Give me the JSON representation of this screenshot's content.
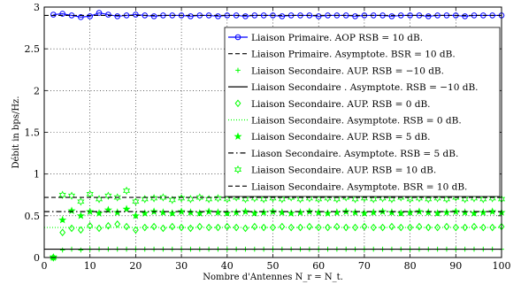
{
  "chart_data": {
    "type": "line",
    "title": "",
    "xlabel": "Nombre d'Antennes N_r = N_t.",
    "ylabel": "Débit in bps/Hz.",
    "xlim": [
      0,
      100
    ],
    "ylim": [
      0,
      3
    ],
    "x_ticks": [
      "0",
      "10",
      "20",
      "30",
      "40",
      "50",
      "60",
      "70",
      "80",
      "90",
      "100"
    ],
    "y_ticks": [
      "0",
      "0.5",
      "1",
      "1.5",
      "2",
      "2.5",
      "3"
    ],
    "grid": true,
    "legend_position": "top-right",
    "series": [
      {
        "name": "Liaison Primaire. AOP RSB = 10 dB.",
        "style": "line-circle",
        "color": "#0000ff",
        "x": [
          2,
          4,
          6,
          8,
          10,
          12,
          14,
          16,
          18,
          20,
          22,
          24,
          26,
          28,
          30,
          32,
          34,
          36,
          38,
          40,
          42,
          44,
          46,
          48,
          50,
          52,
          54,
          56,
          58,
          60,
          62,
          64,
          66,
          68,
          70,
          72,
          74,
          76,
          78,
          80,
          82,
          84,
          86,
          88,
          90,
          92,
          94,
          96,
          98,
          100
        ],
        "y": [
          2.91,
          2.92,
          2.9,
          2.88,
          2.89,
          2.93,
          2.91,
          2.89,
          2.9,
          2.91,
          2.9,
          2.89,
          2.9,
          2.9,
          2.9,
          2.89,
          2.9,
          2.9,
          2.89,
          2.9,
          2.9,
          2.89,
          2.9,
          2.9,
          2.9,
          2.89,
          2.9,
          2.9,
          2.9,
          2.89,
          2.9,
          2.9,
          2.9,
          2.89,
          2.9,
          2.9,
          2.9,
          2.89,
          2.9,
          2.9,
          2.9,
          2.89,
          2.9,
          2.9,
          2.9,
          2.89,
          2.9,
          2.9,
          2.9,
          2.9
        ]
      },
      {
        "name": "Liaison Primaire. Asymptote. BSR = 10 dB.",
        "style": "dashed",
        "color": "#000000",
        "x": [
          0,
          100
        ],
        "y": [
          2.9,
          2.9
        ]
      },
      {
        "name": "Liaison Secondaire. AUP. RSB = −10 dB.",
        "style": "plus",
        "color": "#00ff00",
        "x": [
          2,
          4,
          6,
          8,
          10,
          12,
          14,
          16,
          18,
          20,
          22,
          24,
          26,
          28,
          30,
          32,
          34,
          36,
          38,
          40,
          42,
          44,
          46,
          48,
          50,
          52,
          54,
          56,
          58,
          60,
          62,
          64,
          66,
          68,
          70,
          72,
          74,
          76,
          78,
          80,
          82,
          84,
          86,
          88,
          90,
          92,
          94,
          96,
          98,
          100
        ],
        "y": [
          0.0,
          0.09,
          0.1,
          0.09,
          0.1,
          0.1,
          0.1,
          0.1,
          0.1,
          0.1,
          0.1,
          0.1,
          0.1,
          0.1,
          0.1,
          0.1,
          0.1,
          0.1,
          0.1,
          0.1,
          0.1,
          0.1,
          0.1,
          0.1,
          0.1,
          0.1,
          0.1,
          0.1,
          0.1,
          0.1,
          0.1,
          0.1,
          0.1,
          0.1,
          0.1,
          0.1,
          0.1,
          0.1,
          0.1,
          0.1,
          0.1,
          0.1,
          0.1,
          0.1,
          0.1,
          0.1,
          0.1,
          0.1,
          0.1,
          0.1
        ]
      },
      {
        "name": "Liaison Secondaire . Asymptote. RSB = −10 dB.",
        "style": "solid",
        "color": "#000000",
        "x": [
          0,
          100
        ],
        "y": [
          0.1,
          0.1
        ]
      },
      {
        "name": "Liaison Secondaire. AUP. RSB = 0 dB.",
        "style": "diamond",
        "color": "#00ff00",
        "x": [
          2,
          4,
          6,
          8,
          10,
          12,
          14,
          16,
          18,
          20,
          22,
          24,
          26,
          28,
          30,
          32,
          34,
          36,
          38,
          40,
          42,
          44,
          46,
          48,
          50,
          52,
          54,
          56,
          58,
          60,
          62,
          64,
          66,
          68,
          70,
          72,
          74,
          76,
          78,
          80,
          82,
          84,
          86,
          88,
          90,
          92,
          94,
          96,
          98,
          100
        ],
        "y": [
          0.0,
          0.3,
          0.35,
          0.33,
          0.38,
          0.35,
          0.38,
          0.4,
          0.37,
          0.33,
          0.36,
          0.37,
          0.35,
          0.37,
          0.36,
          0.35,
          0.37,
          0.36,
          0.36,
          0.37,
          0.36,
          0.35,
          0.37,
          0.36,
          0.36,
          0.37,
          0.36,
          0.36,
          0.37,
          0.36,
          0.36,
          0.37,
          0.36,
          0.36,
          0.37,
          0.36,
          0.36,
          0.37,
          0.36,
          0.36,
          0.37,
          0.36,
          0.36,
          0.37,
          0.36,
          0.36,
          0.37,
          0.36,
          0.36,
          0.37
        ]
      },
      {
        "name": "Liaison Secondaire. Asymptote. RSB = 0 dB.",
        "style": "dotted",
        "color": "#00ff00",
        "x": [
          0,
          100
        ],
        "y": [
          0.36,
          0.36
        ]
      },
      {
        "name": "Liaison Secondaire. AUP. RSB = 5 dB.",
        "style": "star",
        "color": "#00ff00",
        "x": [
          2,
          4,
          6,
          8,
          10,
          12,
          14,
          16,
          18,
          20,
          22,
          24,
          26,
          28,
          30,
          32,
          34,
          36,
          38,
          40,
          42,
          44,
          46,
          48,
          50,
          52,
          54,
          56,
          58,
          60,
          62,
          64,
          66,
          68,
          70,
          72,
          74,
          76,
          78,
          80,
          82,
          84,
          86,
          88,
          90,
          92,
          94,
          96,
          98,
          100
        ],
        "y": [
          0.0,
          0.45,
          0.56,
          0.5,
          0.55,
          0.53,
          0.57,
          0.54,
          0.58,
          0.5,
          0.53,
          0.55,
          0.54,
          0.53,
          0.55,
          0.54,
          0.53,
          0.55,
          0.54,
          0.53,
          0.54,
          0.55,
          0.53,
          0.54,
          0.55,
          0.54,
          0.53,
          0.54,
          0.55,
          0.54,
          0.53,
          0.54,
          0.55,
          0.54,
          0.53,
          0.54,
          0.55,
          0.54,
          0.53,
          0.54,
          0.55,
          0.54,
          0.53,
          0.54,
          0.55,
          0.54,
          0.53,
          0.54,
          0.55,
          0.54
        ]
      },
      {
        "name": "Liason Secondaire. Asymptote. RSB = 5 dB.",
        "style": "dashdot",
        "color": "#000000",
        "x": [
          0,
          100
        ],
        "y": [
          0.55,
          0.55
        ]
      },
      {
        "name": "Liaison Secondaire. AUP. RSB = 10 dB.",
        "style": "hexagram",
        "color": "#00ff00",
        "x": [
          2,
          4,
          6,
          8,
          10,
          12,
          14,
          16,
          18,
          20,
          22,
          24,
          26,
          28,
          30,
          32,
          34,
          36,
          38,
          40,
          42,
          44,
          46,
          48,
          50,
          52,
          54,
          56,
          58,
          60,
          62,
          64,
          66,
          68,
          70,
          72,
          74,
          76,
          78,
          80,
          82,
          84,
          86,
          88,
          90,
          92,
          94,
          96,
          98,
          100
        ],
        "y": [
          0.0,
          0.75,
          0.74,
          0.67,
          0.76,
          0.7,
          0.74,
          0.72,
          0.8,
          0.67,
          0.7,
          0.71,
          0.72,
          0.69,
          0.71,
          0.7,
          0.72,
          0.7,
          0.71,
          0.7,
          0.72,
          0.7,
          0.71,
          0.7,
          0.71,
          0.7,
          0.72,
          0.7,
          0.71,
          0.7,
          0.71,
          0.7,
          0.72,
          0.7,
          0.71,
          0.7,
          0.71,
          0.7,
          0.72,
          0.7,
          0.71,
          0.7,
          0.71,
          0.7,
          0.72,
          0.7,
          0.71,
          0.7,
          0.71,
          0.7
        ]
      },
      {
        "name": "Liaison Secondaire. Asymptote. BSR = 10 dB.",
        "style": "dashed",
        "color": "#000000",
        "x": [
          0,
          100
        ],
        "y": [
          0.72,
          0.72
        ]
      }
    ]
  }
}
